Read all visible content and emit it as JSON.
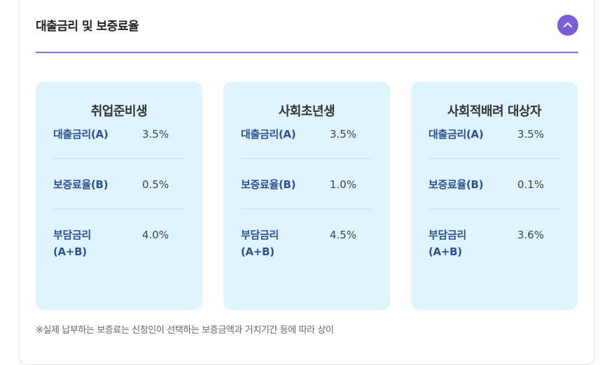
{
  "section": {
    "title": "대출금리 및 보증료율"
  },
  "cards": [
    {
      "title": "취업준비생",
      "rows": [
        {
          "label": "대출금리(A)",
          "value": "3.5%"
        },
        {
          "label": "보증료율(B)",
          "value": "0.5%"
        },
        {
          "label_line1": "부담금리",
          "label_line2": "(A+B)",
          "value": "4.0%"
        }
      ]
    },
    {
      "title": "사회초년생",
      "rows": [
        {
          "label": "대출금리(A)",
          "value": "3.5%"
        },
        {
          "label": "보증료율(B)",
          "value": "1.0%"
        },
        {
          "label_line1": "부담금리",
          "label_line2": "(A+B)",
          "value": "4.5%"
        }
      ]
    },
    {
      "title": "사회적배려 대상자",
      "rows": [
        {
          "label": "대출금리(A)",
          "value": "3.5%"
        },
        {
          "label": "보증료율(B)",
          "value": "0.1%"
        },
        {
          "label_line1": "부담금리",
          "label_line2": "(A+B)",
          "value": "3.6%"
        }
      ]
    }
  ],
  "footnote": "※실제 납부하는 보증료는 신청인이 선택하는 보증금액과 거치기간 등에 따라 상이",
  "colors": {
    "accent": "#7b5fd6",
    "card_bg": "#dff3fd",
    "label": "#2d4f96"
  },
  "icons": {
    "collapse": "chevron-up-icon"
  }
}
